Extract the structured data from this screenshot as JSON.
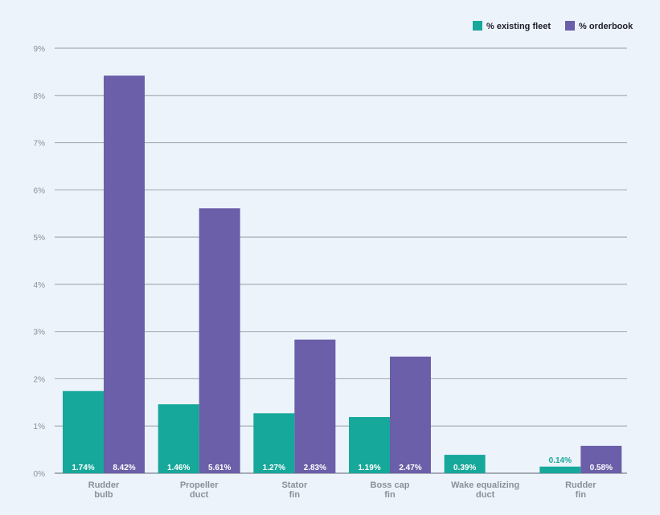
{
  "chart_data": {
    "type": "bar",
    "categories": [
      [
        "Rudder",
        "bulb"
      ],
      [
        "Propeller",
        "duct"
      ],
      [
        "Stator",
        "fin"
      ],
      [
        "Boss cap",
        "fin"
      ],
      [
        "Wake equalizing",
        "duct"
      ],
      [
        "Rudder",
        "fin"
      ]
    ],
    "series": [
      {
        "name": "% existing fleet",
        "color": "#16a89a",
        "values": [
          1.74,
          1.46,
          1.27,
          1.19,
          0.39,
          0.14
        ],
        "labels": [
          "1.74%",
          "1.46%",
          "1.27%",
          "1.19%",
          "0.39%",
          "0.14%"
        ]
      },
      {
        "name": "% orderbook",
        "color": "#6a5fa8",
        "values": [
          8.42,
          5.61,
          2.83,
          2.47,
          0,
          0.58
        ],
        "labels": [
          "8.42%",
          "5.61%",
          "2.83%",
          "2.47%",
          "",
          "0.58%"
        ]
      }
    ],
    "ylim": [
      0,
      9
    ],
    "yticks": [
      "0%",
      "1%",
      "2%",
      "3%",
      "4%",
      "5%",
      "6%",
      "7%",
      "8%",
      "9%"
    ],
    "grid": true,
    "legend_position": "top-right",
    "xlabel": "",
    "ylabel": "",
    "title": ""
  }
}
